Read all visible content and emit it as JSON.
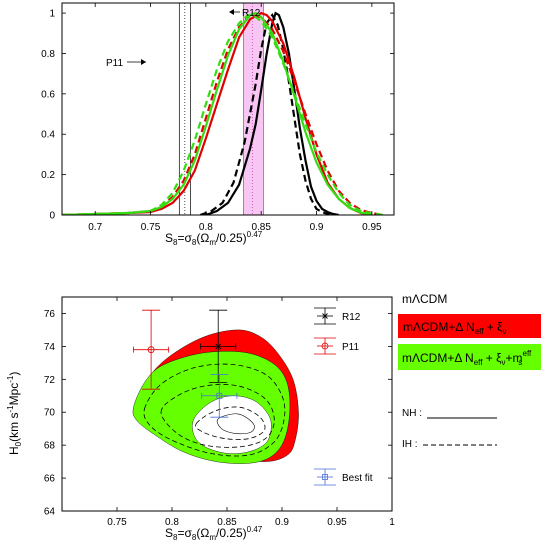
{
  "chart_data": [
    {
      "type": "line",
      "xlabel_main": "S",
      "xlabel_sub": "8",
      "xlabel_rest": "=σ",
      "xlabel_sub2": "8",
      "xlabel_paren": "(Ω",
      "xlabel_sub3": "m",
      "xlabel_tail": "/0.25)",
      "xlabel_sup": "0.47",
      "xlim": [
        0.67,
        0.97
      ],
      "ylim": [
        0,
        1.05
      ],
      "xticks": [
        "0.7",
        "0.75",
        "0.8",
        "0.85",
        "0.9",
        "0.95"
      ],
      "xtick_values": [
        0.7,
        0.75,
        0.8,
        0.85,
        0.9,
        0.95
      ],
      "yticks": [
        "0",
        "0.2",
        "0.4",
        "0.6",
        "0.8",
        "1"
      ],
      "ytick_values": [
        0,
        0.2,
        0.4,
        0.6,
        0.8,
        1.0
      ],
      "annotations": {
        "p11_label": "P11",
        "r12_label": "R12",
        "p11_band": [
          0.776,
          0.786
        ],
        "p11_center": 0.781,
        "r12_band": [
          0.834,
          0.852
        ],
        "r12_center": 0.842
      },
      "series": [
        {
          "color": "#000000",
          "dash": false,
          "x": [
            0.8,
            0.81,
            0.82,
            0.83,
            0.84,
            0.845,
            0.85,
            0.855,
            0.86,
            0.863,
            0.866,
            0.87,
            0.875,
            0.88,
            0.885,
            0.89,
            0.895,
            0.9,
            0.905,
            0.91,
            0.915,
            0.92
          ],
          "y": [
            0.0,
            0.02,
            0.06,
            0.15,
            0.33,
            0.45,
            0.62,
            0.8,
            0.95,
            1.0,
            0.99,
            0.93,
            0.8,
            0.62,
            0.43,
            0.27,
            0.14,
            0.07,
            0.03,
            0.015,
            0.005,
            0.0
          ]
        },
        {
          "color": "#000000",
          "dash": true,
          "x": [
            0.795,
            0.805,
            0.815,
            0.825,
            0.835,
            0.845,
            0.85,
            0.855,
            0.86,
            0.865,
            0.87,
            0.875,
            0.88,
            0.885,
            0.89,
            0.895,
            0.9,
            0.905,
            0.91,
            0.915
          ],
          "y": [
            0.0,
            0.02,
            0.06,
            0.16,
            0.36,
            0.65,
            0.82,
            0.95,
            0.99,
            0.94,
            0.82,
            0.66,
            0.48,
            0.3,
            0.17,
            0.08,
            0.03,
            0.015,
            0.005,
            0.0
          ]
        },
        {
          "color": "#e00000",
          "dash": false,
          "x": [
            0.67,
            0.7,
            0.73,
            0.75,
            0.76,
            0.77,
            0.78,
            0.79,
            0.8,
            0.81,
            0.82,
            0.83,
            0.84,
            0.85,
            0.855,
            0.86,
            0.87,
            0.88,
            0.89,
            0.9,
            0.91,
            0.92,
            0.93,
            0.94,
            0.95
          ],
          "y": [
            0.0,
            0.005,
            0.01,
            0.015,
            0.03,
            0.06,
            0.12,
            0.22,
            0.38,
            0.55,
            0.72,
            0.88,
            0.97,
            1.0,
            0.99,
            0.96,
            0.85,
            0.68,
            0.48,
            0.3,
            0.16,
            0.08,
            0.035,
            0.01,
            0.0
          ]
        },
        {
          "color": "#e00000",
          "dash": true,
          "x": [
            0.67,
            0.7,
            0.73,
            0.75,
            0.76,
            0.77,
            0.78,
            0.79,
            0.8,
            0.81,
            0.82,
            0.83,
            0.84,
            0.85,
            0.86,
            0.87,
            0.88,
            0.89,
            0.9,
            0.91,
            0.92,
            0.93,
            0.94,
            0.95,
            0.96
          ],
          "y": [
            0.0,
            0.005,
            0.01,
            0.02,
            0.04,
            0.09,
            0.17,
            0.3,
            0.48,
            0.66,
            0.82,
            0.93,
            0.99,
            0.98,
            0.92,
            0.81,
            0.66,
            0.5,
            0.35,
            0.22,
            0.12,
            0.06,
            0.025,
            0.01,
            0.0
          ]
        },
        {
          "color": "#33dd11",
          "dash": false,
          "x": [
            0.67,
            0.7,
            0.73,
            0.75,
            0.76,
            0.77,
            0.78,
            0.79,
            0.8,
            0.81,
            0.82,
            0.83,
            0.84,
            0.845,
            0.85,
            0.86,
            0.87,
            0.88,
            0.89,
            0.9,
            0.91,
            0.92,
            0.93,
            0.94,
            0.95
          ],
          "y": [
            0.0,
            0.005,
            0.01,
            0.02,
            0.04,
            0.08,
            0.15,
            0.27,
            0.44,
            0.62,
            0.79,
            0.92,
            0.99,
            1.0,
            0.98,
            0.9,
            0.76,
            0.59,
            0.41,
            0.26,
            0.15,
            0.08,
            0.035,
            0.012,
            0.0
          ]
        },
        {
          "color": "#33dd11",
          "dash": true,
          "x": [
            0.67,
            0.7,
            0.73,
            0.75,
            0.76,
            0.77,
            0.78,
            0.79,
            0.8,
            0.81,
            0.82,
            0.83,
            0.838,
            0.845,
            0.85,
            0.86,
            0.87,
            0.88,
            0.89,
            0.9,
            0.91,
            0.92,
            0.93,
            0.94,
            0.95,
            0.96
          ],
          "y": [
            0.0,
            0.005,
            0.01,
            0.02,
            0.05,
            0.11,
            0.22,
            0.37,
            0.55,
            0.72,
            0.86,
            0.95,
            0.99,
            0.98,
            0.96,
            0.88,
            0.75,
            0.6,
            0.45,
            0.31,
            0.2,
            0.11,
            0.05,
            0.02,
            0.008,
            0.0
          ]
        }
      ]
    },
    {
      "type": "scatter",
      "ylabel_main": "H",
      "ylabel_sub": "0",
      "ylabel_rest": "(km s",
      "ylabel_sup": "-1",
      "ylabel_tail": "Mpc",
      "ylabel_sup2": "-1",
      "ylabel_close": ")",
      "xlim": [
        0.7,
        1.0
      ],
      "ylim": [
        64,
        77
      ],
      "xticks": [
        "0.75",
        "0.8",
        "0.85",
        "0.9",
        "0.95",
        "1"
      ],
      "xtick_values": [
        0.75,
        0.8,
        0.85,
        0.9,
        0.95,
        1.0
      ],
      "yticks": [
        "64",
        "66",
        "68",
        "70",
        "72",
        "74",
        "76"
      ],
      "ytick_values": [
        64,
        66,
        68,
        70,
        72,
        74,
        76
      ],
      "points": [
        {
          "label": "R12",
          "marker": "x",
          "color": "#000000",
          "x": 0.842,
          "y": 74.0,
          "xerr": 0.016,
          "yerr": 2.2
        },
        {
          "label": "P11",
          "marker": "o",
          "color": "#e00000",
          "x": 0.781,
          "y": 73.8,
          "xerr": 0.016,
          "yerr": 2.4
        },
        {
          "label": "Best fit",
          "marker": "s",
          "color": "#4a6fd8",
          "x": 0.843,
          "y": 71.0,
          "xerr": 0.016,
          "yerr": 1.3
        }
      ],
      "regions": {
        "red_outer": [
          [
            0.77,
            70.5
          ],
          [
            0.78,
            72.2
          ],
          [
            0.8,
            73.5
          ],
          [
            0.83,
            74.6
          ],
          [
            0.86,
            75.0
          ],
          [
            0.88,
            74.6
          ],
          [
            0.896,
            73.6
          ],
          [
            0.91,
            72.0
          ],
          [
            0.915,
            70.0
          ],
          [
            0.912,
            68.3
          ],
          [
            0.905,
            67.4
          ],
          [
            0.885,
            67.0
          ],
          [
            0.85,
            67.3
          ],
          [
            0.82,
            67.9
          ],
          [
            0.795,
            68.7
          ],
          [
            0.775,
            69.6
          ]
        ],
        "green_outer": [
          [
            0.765,
            70.3
          ],
          [
            0.775,
            71.8
          ],
          [
            0.79,
            72.8
          ],
          [
            0.82,
            73.5
          ],
          [
            0.85,
            73.7
          ],
          [
            0.875,
            73.5
          ],
          [
            0.895,
            72.8
          ],
          [
            0.905,
            71.7
          ],
          [
            0.907,
            70.0
          ],
          [
            0.902,
            68.3
          ],
          [
            0.89,
            67.3
          ],
          [
            0.87,
            66.9
          ],
          [
            0.84,
            67.0
          ],
          [
            0.81,
            67.6
          ],
          [
            0.785,
            68.6
          ],
          [
            0.768,
            69.5
          ]
        ],
        "white_inner": [
          [
            0.82,
            69.6
          ],
          [
            0.835,
            70.6
          ],
          [
            0.855,
            71.0
          ],
          [
            0.875,
            70.7
          ],
          [
            0.888,
            69.8
          ],
          [
            0.89,
            68.9
          ],
          [
            0.885,
            68.1
          ],
          [
            0.87,
            67.6
          ],
          [
            0.85,
            67.5
          ],
          [
            0.83,
            67.9
          ],
          [
            0.82,
            68.6
          ]
        ],
        "dashed_1": [
          [
            0.775,
            70.2
          ],
          [
            0.79,
            71.7
          ],
          [
            0.82,
            72.7
          ],
          [
            0.855,
            72.9
          ],
          [
            0.885,
            72.3
          ],
          [
            0.9,
            71.0
          ],
          [
            0.902,
            69.6
          ],
          [
            0.893,
            68.2
          ],
          [
            0.87,
            67.4
          ],
          [
            0.835,
            67.5
          ],
          [
            0.8,
            68.3
          ],
          [
            0.78,
            69.2
          ]
        ],
        "dashed_2": [
          [
            0.79,
            70.0
          ],
          [
            0.805,
            71.0
          ],
          [
            0.83,
            71.6
          ],
          [
            0.86,
            71.6
          ],
          [
            0.885,
            70.8
          ],
          [
            0.893,
            69.5
          ],
          [
            0.885,
            68.4
          ],
          [
            0.862,
            67.9
          ],
          [
            0.83,
            68.0
          ],
          [
            0.805,
            68.7
          ]
        ],
        "dashed_3": [
          [
            0.822,
            69.3
          ],
          [
            0.84,
            70.1
          ],
          [
            0.862,
            70.3
          ],
          [
            0.88,
            69.7
          ],
          [
            0.884,
            68.9
          ],
          [
            0.87,
            68.4
          ],
          [
            0.848,
            68.4
          ],
          [
            0.828,
            68.8
          ]
        ],
        "solid_inner": [
          [
            0.842,
            69.6
          ],
          [
            0.86,
            69.9
          ],
          [
            0.874,
            69.3
          ],
          [
            0.872,
            68.8
          ],
          [
            0.858,
            68.7
          ],
          [
            0.845,
            69.0
          ]
        ]
      },
      "legend": {
        "title": "mΛCDM",
        "red_label": "mΛCDM+Δ N",
        "red_sub": "eff",
        "red_tail": " + ξ",
        "red_sub2": "ν",
        "green_label": "mΛCDM+Δ N",
        "green_sub": "eff",
        "green_tail": " + ξ",
        "green_sub2": "ν",
        "green_tail2": "+m",
        "green_sup": "eff",
        "green_sub3": "s",
        "nh_label": "NH :",
        "ih_label": "IH :",
        "red_color": "#ff0000",
        "green_color": "#66ff00"
      }
    }
  ]
}
